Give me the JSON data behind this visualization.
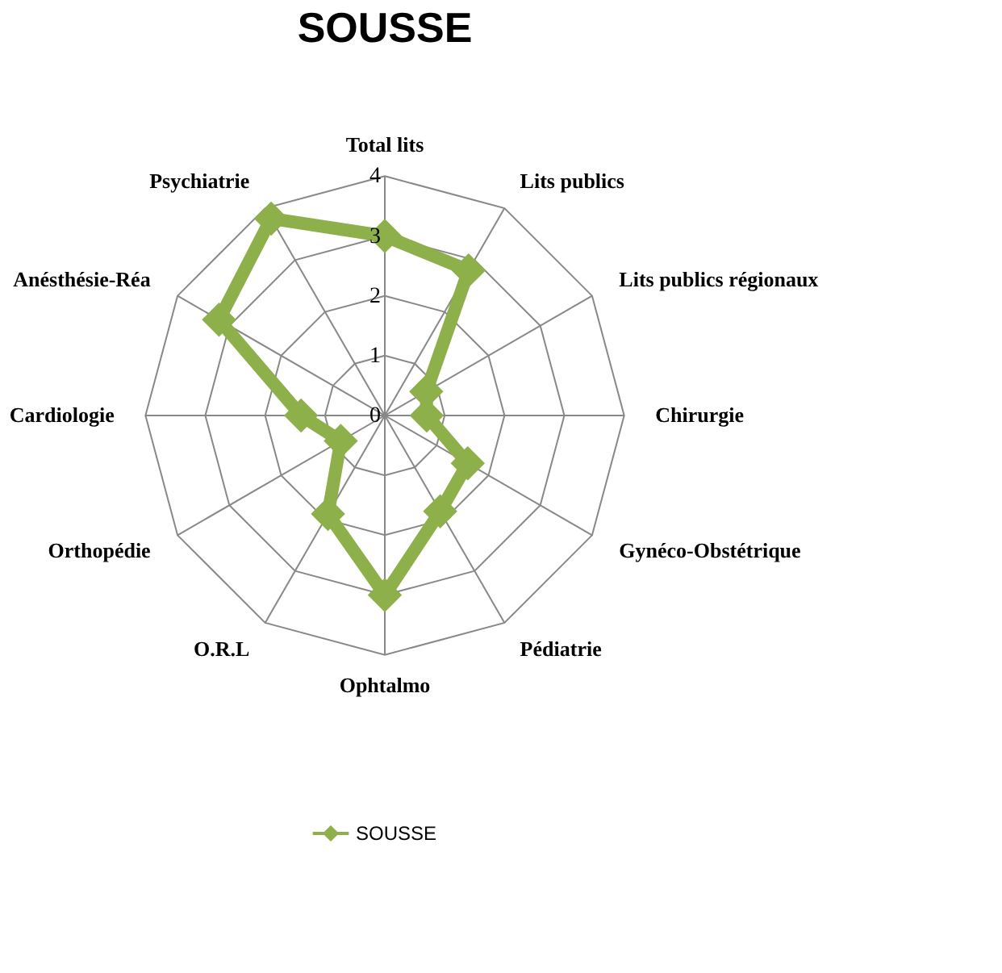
{
  "chart_data": {
    "type": "radar",
    "title": "SOUSSE",
    "categories": [
      "Total lits",
      "Lits publics",
      "Lits publics régionaux",
      "Chirurgie",
      "Gynéco-Obstétrique",
      "Pédiatrie",
      "Ophtalmo",
      "O.R.L",
      "Orthopédie",
      "Cardiologie",
      "Anésthésie-Réa",
      "Psychiatrie"
    ],
    "series": [
      {
        "name": "SOUSSE",
        "color": "#8db04a",
        "values": [
          3.0,
          2.8,
          0.8,
          0.7,
          1.6,
          1.85,
          3.0,
          1.9,
          0.85,
          1.4,
          3.2,
          3.8
        ]
      }
    ],
    "ylim": [
      0,
      4
    ],
    "yticks": [
      0,
      1,
      2,
      3,
      4
    ],
    "marker": "diamond",
    "legend": "bottom",
    "grid": true
  }
}
